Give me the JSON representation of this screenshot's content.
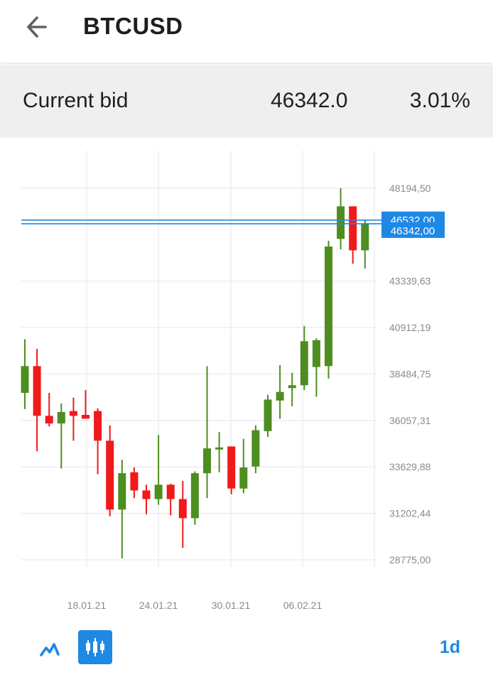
{
  "header": {
    "back_icon": "arrow-left-icon",
    "title": "BTCUSD"
  },
  "bid_bar": {
    "label": "Current bid",
    "value": "46342.0",
    "change": "3.01%"
  },
  "colors": {
    "up": "#4e8e21",
    "down": "#f01a1a",
    "accent": "#1e88e5",
    "grid": "#eeeef2",
    "axis_text": "#8a8a8a"
  },
  "chart_data": {
    "type": "candlestick",
    "y_ticks": [
      "48194,50",
      "43339,63",
      "40912,19",
      "38484,75",
      "36057,31",
      "33629,88",
      "31202,44",
      "28775,00"
    ],
    "x_ticks": [
      "18.01.21",
      "24.01.21",
      "30.01.21",
      "06.02.21"
    ],
    "ylim": [
      28775,
      48194.5
    ],
    "price_lines": [
      {
        "label": "46532,00",
        "value": 46532
      },
      {
        "label": "46342,00",
        "value": 46342
      }
    ],
    "candles": [
      {
        "o": 37500,
        "h": 40300,
        "l": 36650,
        "c": 38900
      },
      {
        "o": 38900,
        "h": 39800,
        "l": 34450,
        "c": 36300
      },
      {
        "o": 36300,
        "h": 37500,
        "l": 35750,
        "c": 35900
      },
      {
        "o": 35900,
        "h": 36950,
        "l": 33550,
        "c": 36500
      },
      {
        "o": 36550,
        "h": 37250,
        "l": 35000,
        "c": 36300
      },
      {
        "o": 36350,
        "h": 37650,
        "l": 36150,
        "c": 36150
      },
      {
        "o": 36550,
        "h": 36700,
        "l": 33250,
        "c": 35000
      },
      {
        "o": 35000,
        "h": 35800,
        "l": 31050,
        "c": 31400
      },
      {
        "o": 31400,
        "h": 34000,
        "l": 28850,
        "c": 33300
      },
      {
        "o": 33350,
        "h": 33600,
        "l": 32000,
        "c": 32400
      },
      {
        "o": 32400,
        "h": 32700,
        "l": 31150,
        "c": 31950
      },
      {
        "o": 31950,
        "h": 35300,
        "l": 31650,
        "c": 32700
      },
      {
        "o": 32700,
        "h": 32750,
        "l": 31100,
        "c": 31950
      },
      {
        "o": 31950,
        "h": 32900,
        "l": 29400,
        "c": 30950
      },
      {
        "o": 30950,
        "h": 33400,
        "l": 30600,
        "c": 33300
      },
      {
        "o": 33300,
        "h": 38900,
        "l": 32000,
        "c": 34600
      },
      {
        "o": 34650,
        "h": 35450,
        "l": 33350,
        "c": 34650
      },
      {
        "o": 34700,
        "h": 34700,
        "l": 32200,
        "c": 32500
      },
      {
        "o": 32500,
        "h": 35100,
        "l": 32250,
        "c": 33600
      },
      {
        "o": 33650,
        "h": 35800,
        "l": 33300,
        "c": 35550
      },
      {
        "o": 35500,
        "h": 37400,
        "l": 35200,
        "c": 37150
      },
      {
        "o": 37100,
        "h": 38950,
        "l": 36150,
        "c": 37550
      },
      {
        "o": 37750,
        "h": 38550,
        "l": 36800,
        "c": 37900
      },
      {
        "o": 37900,
        "h": 41000,
        "l": 37650,
        "c": 40200
      },
      {
        "o": 38850,
        "h": 40350,
        "l": 37300,
        "c": 40250
      },
      {
        "o": 38900,
        "h": 45450,
        "l": 38250,
        "c": 45150
      },
      {
        "o": 45550,
        "h": 48200,
        "l": 45000,
        "c": 47250
      },
      {
        "o": 47250,
        "h": 47250,
        "l": 44250,
        "c": 44950
      },
      {
        "o": 44950,
        "h": 46560,
        "l": 44000,
        "c": 46350
      }
    ]
  },
  "toolbar": {
    "line_icon": "line-chart-icon",
    "candle_icon": "candlestick-icon",
    "timeframe": "1d"
  }
}
